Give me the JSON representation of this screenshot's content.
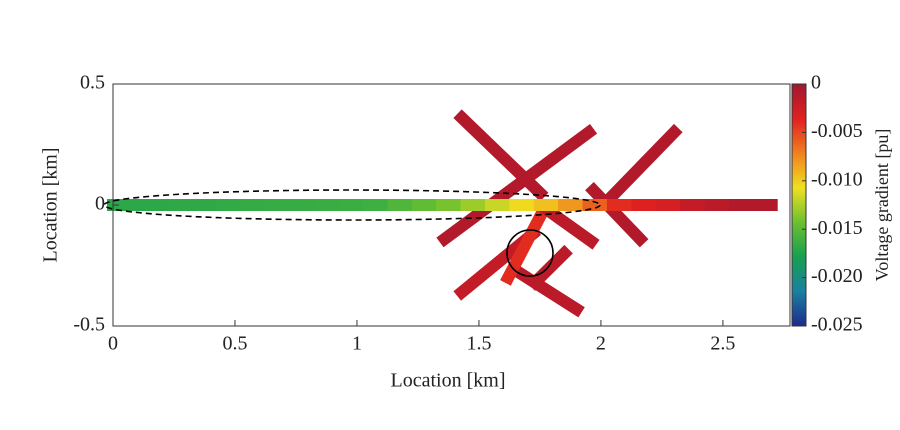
{
  "chart_data": {
    "type": "segments",
    "xlabel": "Location [km]",
    "ylabel": "Location [km]",
    "colorbar_label": "Voltage gradient [pu]",
    "xlim": [
      0,
      2.775
    ],
    "ylim": [
      -0.5,
      0.5
    ],
    "xticks": [
      0,
      0.5,
      1,
      1.5,
      2,
      2.5
    ],
    "yticks": [
      -0.5,
      0,
      0.5
    ],
    "clim": [
      -0.025,
      0
    ],
    "cticks": [
      {
        "value": -0.025,
        "label": "-0.025"
      },
      {
        "value": -0.02,
        "label": "-0.020"
      },
      {
        "value": -0.015,
        "label": "-0.015"
      },
      {
        "value": -0.01,
        "label": "-0.010"
      },
      {
        "value": -0.005,
        "label": "-0.005"
      },
      0
    ],
    "colormap": [
      "#1f2a8c",
      "#1a80a0",
      "#16a050",
      "#6cc030",
      "#f0e020",
      "#f08020",
      "#e02020",
      "#a01830"
    ],
    "segments": [
      {
        "x": [
          0,
          0.1
        ],
        "y": [
          0,
          0
        ],
        "value": -0.017
      },
      {
        "x": [
          0.1,
          0.2
        ],
        "y": [
          0,
          0
        ],
        "value": -0.017
      },
      {
        "x": [
          0.2,
          0.3
        ],
        "y": [
          0,
          0
        ],
        "value": -0.0168
      },
      {
        "x": [
          0.3,
          0.4
        ],
        "y": [
          0,
          0
        ],
        "value": -0.0168
      },
      {
        "x": [
          0.4,
          0.5
        ],
        "y": [
          0,
          0
        ],
        "value": -0.0167
      },
      {
        "x": [
          0.5,
          0.6
        ],
        "y": [
          0,
          0
        ],
        "value": -0.0166
      },
      {
        "x": [
          0.6,
          0.7
        ],
        "y": [
          0,
          0
        ],
        "value": -0.0165
      },
      {
        "x": [
          0.7,
          0.8
        ],
        "y": [
          0,
          0
        ],
        "value": -0.0165
      },
      {
        "x": [
          0.8,
          0.9
        ],
        "y": [
          0,
          0
        ],
        "value": -0.0164
      },
      {
        "x": [
          0.9,
          1
        ],
        "y": [
          0,
          0
        ],
        "value": -0.0163
      },
      {
        "x": [
          1,
          1.1
        ],
        "y": [
          0,
          0
        ],
        "value": -0.0162
      },
      {
        "x": [
          1.1,
          1.2
        ],
        "y": [
          0,
          0
        ],
        "value": -0.0155
      },
      {
        "x": [
          1.2,
          1.3
        ],
        "y": [
          0,
          0
        ],
        "value": -0.0148
      },
      {
        "x": [
          1.3,
          1.4
        ],
        "y": [
          0,
          0
        ],
        "value": -0.014
      },
      {
        "x": [
          1.4,
          1.5
        ],
        "y": [
          0,
          0
        ],
        "value": -0.013
      },
      {
        "x": [
          1.5,
          1.6
        ],
        "y": [
          0,
          0
        ],
        "value": -0.0118
      },
      {
        "x": [
          1.6,
          1.7
        ],
        "y": [
          0,
          0
        ],
        "value": -0.0105
      },
      {
        "x": [
          1.7,
          1.8
        ],
        "y": [
          0,
          0
        ],
        "value": -0.0095
      },
      {
        "x": [
          1.8,
          1.9
        ],
        "y": [
          0,
          0
        ],
        "value": -0.008
      },
      {
        "x": [
          1.9,
          2
        ],
        "y": [
          0,
          0
        ],
        "value": -0.006
      },
      {
        "x": [
          2,
          2.1
        ],
        "y": [
          0,
          0
        ],
        "value": -0.004
      },
      {
        "x": [
          2.1,
          2.2
        ],
        "y": [
          0,
          0
        ],
        "value": -0.0035
      },
      {
        "x": [
          2.2,
          2.3
        ],
        "y": [
          0,
          0
        ],
        "value": -0.003
      },
      {
        "x": [
          2.3,
          2.4
        ],
        "y": [
          0,
          0
        ],
        "value": -0.002
      },
      {
        "x": [
          2.4,
          2.5
        ],
        "y": [
          0,
          0
        ],
        "value": -0.0015
      },
      {
        "x": [
          2.5,
          2.6
        ],
        "y": [
          0,
          0
        ],
        "value": -0.001
      },
      {
        "x": [
          2.6,
          2.7
        ],
        "y": [
          0,
          0
        ],
        "value": -0.001
      },
      {
        "x": [
          1.43,
          1.75
        ],
        "y": [
          0.36,
          0.05
        ],
        "value": -0.001
      },
      {
        "x": [
          1.36,
          1.95
        ],
        "y": [
          -0.14,
          0.3
        ],
        "value": -0.001
      },
      {
        "x": [
          1.78,
          1.96
        ],
        "y": [
          -0.02,
          -0.15
        ],
        "value": -0.0015
      },
      {
        "x": [
          2.03,
          2.3
        ],
        "y": [
          0.02,
          0.3
        ],
        "value": -0.001
      },
      {
        "x": [
          1.97,
          2.16
        ],
        "y": [
          0.06,
          -0.14
        ],
        "value": -0.001
      },
      {
        "x": [
          1.76,
          1.62
        ],
        "y": [
          -0.03,
          -0.3
        ],
        "value": -0.004
      },
      {
        "x": [
          1.43,
          1.72
        ],
        "y": [
          -0.36,
          -0.12
        ],
        "value": -0.002
      },
      {
        "x": [
          1.65,
          1.9
        ],
        "y": [
          -0.27,
          -0.43
        ],
        "value": -0.0015
      },
      {
        "x": [
          1.73,
          1.85
        ],
        "y": [
          -0.32,
          -0.2
        ],
        "value": -0.0015
      }
    ]
  }
}
